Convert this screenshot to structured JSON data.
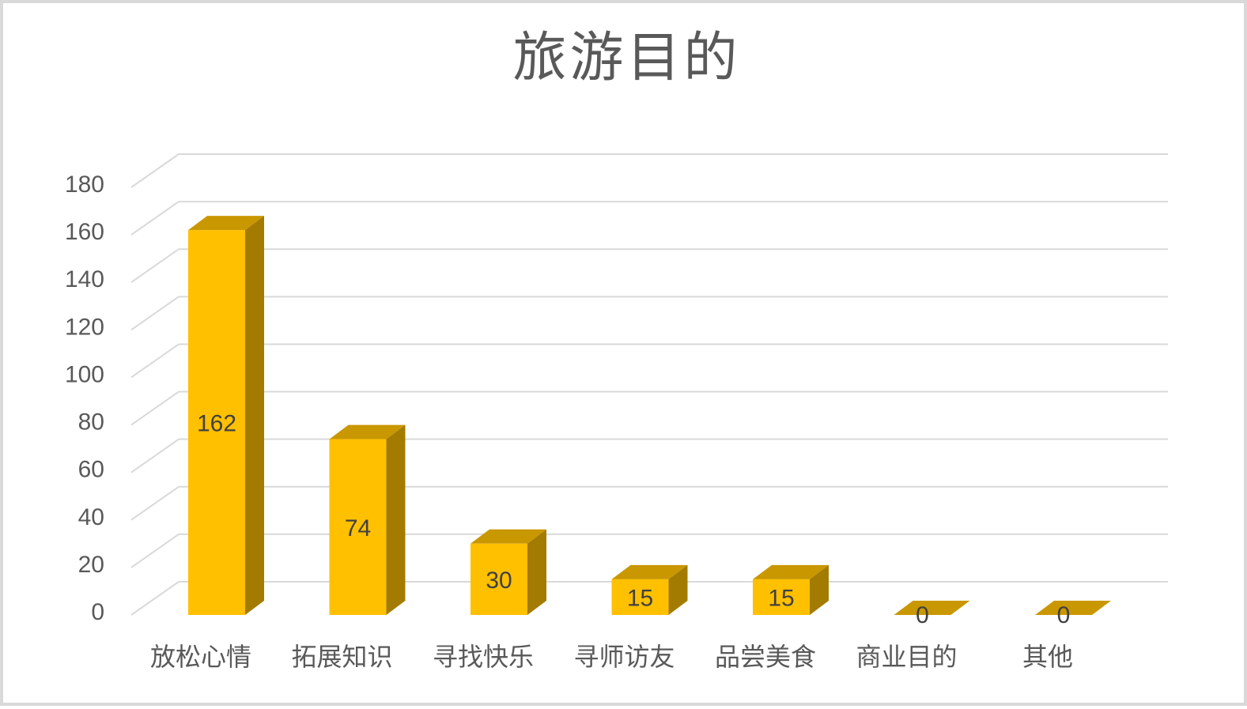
{
  "chart_data": {
    "type": "bar",
    "title": "旅游目的",
    "categories": [
      "放松心情",
      "拓展知识",
      "寻找快乐",
      "寻师访友",
      "品尝美食",
      "商业目的",
      "其他"
    ],
    "values": [
      162,
      74,
      30,
      15,
      15,
      0,
      0
    ],
    "ylim": [
      0,
      180
    ],
    "yticks": [
      0,
      20,
      40,
      60,
      80,
      100,
      120,
      140,
      160,
      180
    ],
    "grid": true,
    "legend": "none",
    "data_labels": true,
    "colors": {
      "bar_front": "#ffc000",
      "bar_top": "#c99700",
      "bar_side": "#a37b00",
      "gridline": "#d9d9d9",
      "text": "#595959"
    }
  }
}
